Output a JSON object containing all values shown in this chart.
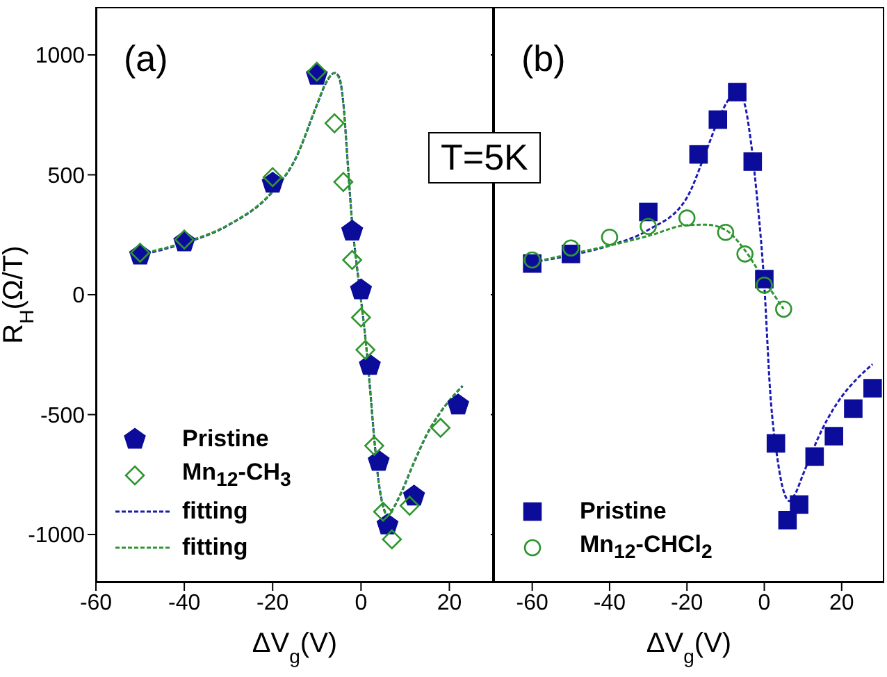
{
  "chart_data": [
    {
      "type": "scatter",
      "title": "(a)",
      "xlabel": "ΔV$_{g}$(V)",
      "ylabel": "R$_{H}$(Ω/T)",
      "annotations": [
        "T=5K"
      ],
      "xlim": [
        -60,
        30
      ],
      "xticks": [
        -60,
        -40,
        -20,
        0,
        20
      ],
      "ylim": [
        -1200,
        1200
      ],
      "yticks": [
        -1000,
        -500,
        0,
        500,
        1000
      ],
      "grid": false,
      "legend": "bottom left",
      "series": [
        {
          "name": "Pristine",
          "color": "#0c0c9a",
          "x": [
            -50,
            -40,
            -20,
            -10,
            -2,
            0,
            2,
            4,
            6,
            12,
            22
          ],
          "values": [
            165,
            220,
            465,
            915,
            265,
            20,
            -295,
            -695,
            -960,
            -840,
            -460
          ]
        },
        {
          "name": "Mn$_{12}$-CH$_{3}$",
          "marker": "diamond",
          "color": "#2e962e",
          "x": [
            -50,
            -40,
            -20,
            -10,
            -6,
            -4,
            -2,
            0,
            1,
            3,
            5,
            7,
            11,
            18
          ],
          "values": [
            175,
            230,
            490,
            930,
            715,
            470,
            145,
            -95,
            -230,
            -630,
            -905,
            -1020,
            -880,
            -555
          ]
        },
        {
          "name": "fitting",
          "type": "line",
          "marker": "none",
          "line_style": "dashed",
          "color": "#1a1ab4",
          "x": [
            -50,
            -40,
            -30,
            -20,
            -15,
            -10,
            -8,
            -6,
            -5,
            -4,
            -3,
            -2,
            -1,
            0,
            1,
            2,
            3,
            4,
            5,
            6,
            7,
            9,
            12,
            15,
            18,
            21,
            23
          ],
          "values": [
            165,
            215,
            290,
            430,
            560,
            790,
            880,
            925,
            910,
            800,
            550,
            300,
            130,
            -20,
            -180,
            -380,
            -600,
            -780,
            -880,
            -920,
            -900,
            -830,
            -700,
            -580,
            -490,
            -420,
            -380
          ]
        },
        {
          "name": "fitting",
          "type": "line",
          "marker": "none",
          "line_style": "dashed",
          "color": "#2e962e",
          "x": [
            -50,
            -40,
            -30,
            -20,
            -15,
            -10,
            -8,
            -6,
            -5,
            -4,
            -3,
            -2,
            -1,
            0,
            1,
            2,
            3,
            4,
            5,
            6,
            7,
            9,
            12,
            15,
            18,
            21,
            23
          ],
          "values": [
            170,
            218,
            292,
            432,
            562,
            792,
            882,
            925,
            905,
            795,
            545,
            295,
            125,
            -25,
            -185,
            -385,
            -605,
            -785,
            -885,
            -922,
            -900,
            -828,
            -698,
            -578,
            -490,
            -420,
            -382
          ]
        }
      ]
    },
    {
      "type": "scatter",
      "title": "(b)",
      "xlabel": "ΔV$_{g}$(V)",
      "xlim": [
        -70,
        31
      ],
      "xticks": [
        -60,
        -40,
        -20,
        0,
        20
      ],
      "ylim": [
        -1200,
        1200
      ],
      "yticks": [
        -1000,
        -500,
        0,
        500,
        1000
      ],
      "tick_labels": "x",
      "grid": false,
      "legend": "bottom left",
      "series": [
        {
          "name": "Pristine",
          "marker": "square",
          "color": "#0c0c9a",
          "x": [
            -60,
            -50,
            -30,
            -17,
            -12,
            -7,
            -3,
            0,
            3,
            6,
            9,
            13,
            18,
            23,
            28
          ],
          "values": [
            130,
            170,
            345,
            585,
            730,
            845,
            555,
            65,
            -620,
            -940,
            -875,
            -675,
            -590,
            -475,
            -390
          ]
        },
        {
          "name": "Mn$_{12}$-CHCl$_{2}$",
          "marker": "circle",
          "color": "#2e962e",
          "x": [
            -60,
            -50,
            -40,
            -30,
            -20,
            -10,
            -5,
            0,
            5
          ],
          "values": [
            145,
            195,
            240,
            285,
            320,
            260,
            170,
            40,
            -60
          ]
        },
        {
          "type": "line",
          "marker": "none",
          "line_style": "dashed",
          "color": "#1a1ab4",
          "x": [
            -60,
            -50,
            -40,
            -30,
            -20,
            -15,
            -12,
            -9,
            -7,
            -5,
            -4,
            -2,
            0,
            1.5,
            3.5,
            5,
            6.5,
            8,
            10,
            15,
            20,
            24,
            28
          ],
          "values": [
            135,
            165,
            205,
            270,
            405,
            600,
            725,
            820,
            850,
            790,
            700,
            425,
            40,
            -400,
            -695,
            -820,
            -860,
            -830,
            -750,
            -560,
            -425,
            -350,
            -290
          ]
        },
        {
          "type": "line",
          "marker": "none",
          "line_style": "dashed",
          "color": "#2e962e",
          "x": [
            -60,
            -50,
            -40,
            -30,
            -20,
            -15,
            -10,
            -5,
            0,
            5
          ],
          "values": [
            135,
            170,
            205,
            245,
            290,
            292,
            270,
            185,
            60,
            -60
          ]
        }
      ]
    }
  ]
}
